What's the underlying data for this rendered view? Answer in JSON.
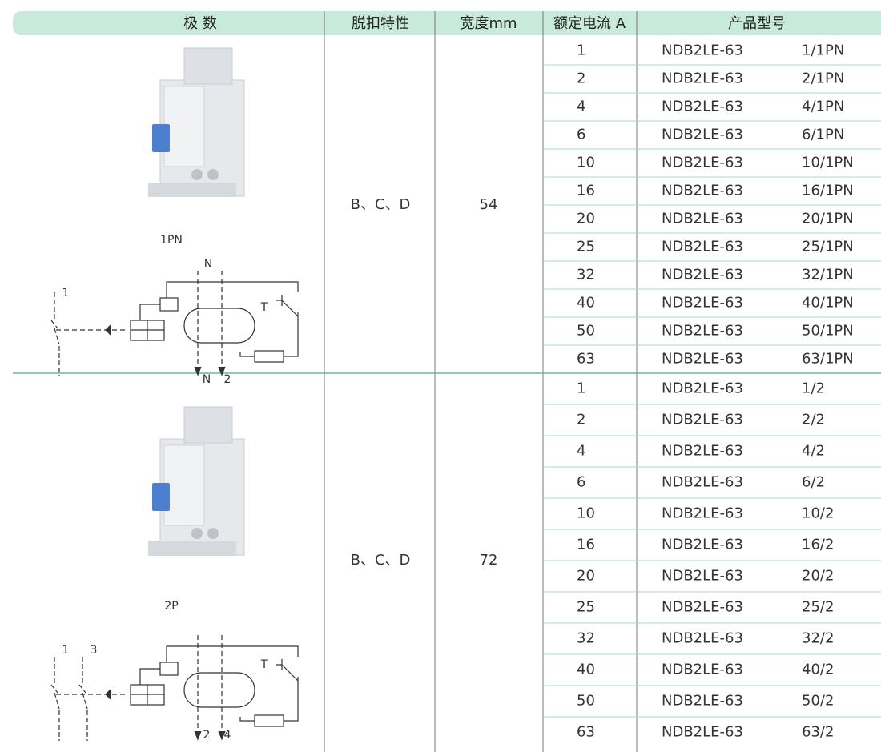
{
  "header": {
    "columns": [
      "极 数",
      "脱扣特性",
      "宽度mm",
      "额定电流 A",
      "产品型号"
    ]
  },
  "groups": [
    {
      "pole": "1PN",
      "trip": "B、C、D",
      "width": 54,
      "diagram_labels": [
        "N",
        "1",
        "T",
        "N",
        "2"
      ],
      "rows": [
        [
          1,
          "NDB2LE-63",
          "1/1PN"
        ],
        [
          2,
          "NDB2LE-63",
          "2/1PN"
        ],
        [
          4,
          "NDB2LE-63",
          "4/1PN"
        ],
        [
          6,
          "NDB2LE-63",
          "6/1PN"
        ],
        [
          10,
          "NDB2LE-63",
          "10/1PN"
        ],
        [
          16,
          "NDB2LE-63",
          "16/1PN"
        ],
        [
          20,
          "NDB2LE-63",
          "20/1PN"
        ],
        [
          25,
          "NDB2LE-63",
          "25/1PN"
        ],
        [
          32,
          "NDB2LE-63",
          "32/1PN"
        ],
        [
          40,
          "NDB2LE-63",
          "40/1PN"
        ],
        [
          50,
          "NDB2LE-63",
          "50/1PN"
        ],
        [
          63,
          "NDB2LE-63",
          "63/1PN"
        ]
      ]
    },
    {
      "pole": "2P",
      "trip": "B、C、D",
      "width": 72,
      "diagram_labels": [
        "1",
        "3",
        "T",
        "2",
        "4"
      ],
      "rows": [
        [
          1,
          "NDB2LE-63",
          "1/2"
        ],
        [
          2,
          "NDB2LE-63",
          "2/2"
        ],
        [
          4,
          "NDB2LE-63",
          "4/2"
        ],
        [
          6,
          "NDB2LE-63",
          "6/2"
        ],
        [
          10,
          "NDB2LE-63",
          "10/2"
        ],
        [
          16,
          "NDB2LE-63",
          "16/2"
        ],
        [
          20,
          "NDB2LE-63",
          "20/2"
        ],
        [
          25,
          "NDB2LE-63",
          "25/2"
        ],
        [
          32,
          "NDB2LE-63",
          "32/2"
        ],
        [
          40,
          "NDB2LE-63",
          "40/2"
        ],
        [
          50,
          "NDB2LE-63",
          "50/2"
        ],
        [
          63,
          "NDB2LE-63",
          "63/2"
        ]
      ]
    }
  ]
}
